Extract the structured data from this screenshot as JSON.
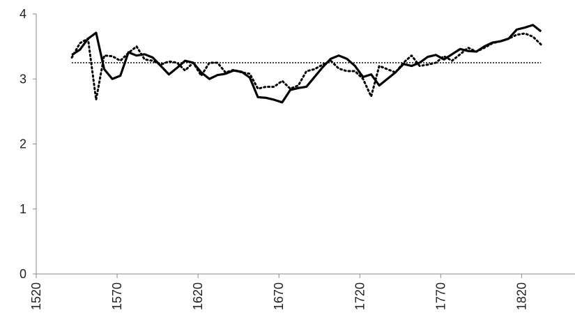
{
  "chart_data": {
    "type": "line",
    "x": [
      1542,
      1547,
      1552,
      1557,
      1562,
      1567,
      1572,
      1577,
      1582,
      1587,
      1592,
      1597,
      1602,
      1607,
      1612,
      1617,
      1622,
      1627,
      1632,
      1637,
      1642,
      1647,
      1652,
      1657,
      1662,
      1667,
      1672,
      1677,
      1682,
      1687,
      1692,
      1697,
      1702,
      1707,
      1712,
      1717,
      1722,
      1727,
      1732,
      1737,
      1742,
      1747,
      1752,
      1757,
      1762,
      1767,
      1772,
      1777,
      1782,
      1787,
      1792,
      1797,
      1802,
      1807,
      1812,
      1817,
      1822,
      1827,
      1832
    ],
    "series": [
      {
        "color": "#000000",
        "dash": "solid",
        "values": [
          3.37,
          3.45,
          3.62,
          3.71,
          3.15,
          3.0,
          3.05,
          3.41,
          3.36,
          3.38,
          3.33,
          3.2,
          3.07,
          3.17,
          3.28,
          3.25,
          3.1,
          3.0,
          3.06,
          3.08,
          3.13,
          3.11,
          3.02,
          2.72,
          2.71,
          2.68,
          2.64,
          2.83,
          2.86,
          2.88,
          3.03,
          3.18,
          3.31,
          3.36,
          3.31,
          3.2,
          3.03,
          3.07,
          2.9,
          3.0,
          3.1,
          3.23,
          3.2,
          3.25,
          3.34,
          3.37,
          3.3,
          3.38,
          3.46,
          3.43,
          3.42,
          3.5,
          3.56,
          3.58,
          3.62,
          3.76,
          3.79,
          3.83,
          3.73
        ]
      },
      {
        "color": "#000000",
        "dash": "dotted",
        "values": [
          3.33,
          3.55,
          3.62,
          2.68,
          3.36,
          3.35,
          3.28,
          3.4,
          3.5,
          3.3,
          3.28,
          3.22,
          3.27,
          3.25,
          3.13,
          3.25,
          3.05,
          3.25,
          3.25,
          3.1,
          3.14,
          3.1,
          3.08,
          2.85,
          2.88,
          2.88,
          2.97,
          2.85,
          2.9,
          3.12,
          3.15,
          3.22,
          3.28,
          3.16,
          3.12,
          3.12,
          3.0,
          2.73,
          3.2,
          3.15,
          3.1,
          3.25,
          3.36,
          3.2,
          3.22,
          3.25,
          3.35,
          3.28,
          3.38,
          3.48,
          3.42,
          3.48,
          3.55,
          3.58,
          3.62,
          3.68,
          3.7,
          3.65,
          3.53
        ]
      }
    ],
    "reference_line": {
      "value": 3.25,
      "x": [
        1542,
        1832
      ],
      "color": "#000000"
    },
    "xlim": [
      1520,
      1853
    ],
    "xticks": [
      1520,
      1570,
      1620,
      1670,
      1720,
      1770,
      1820
    ],
    "ylim": [
      0,
      4
    ],
    "yticks": [
      0,
      1,
      2,
      3,
      4
    ]
  }
}
